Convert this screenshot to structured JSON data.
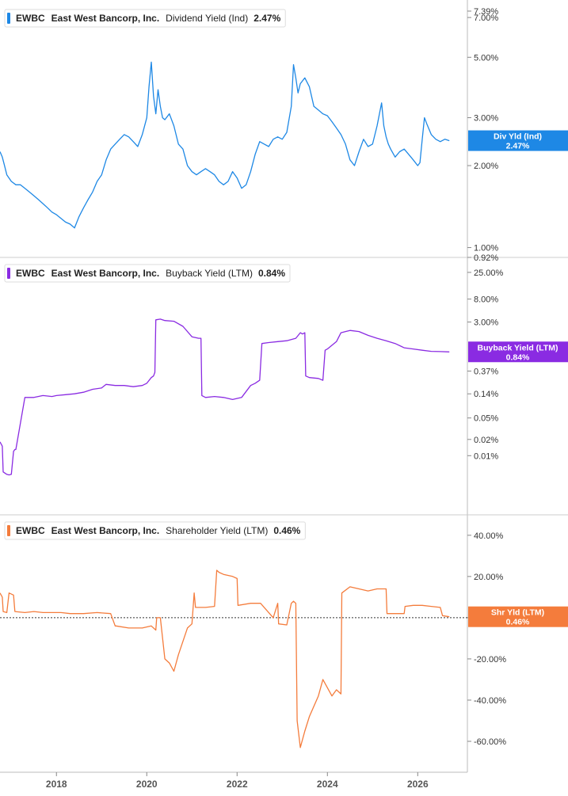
{
  "chart_data": [
    {
      "type": "line",
      "title": "",
      "legend": {
        "ticker": "EWBC",
        "company": "East West Bancorp, Inc.",
        "metric": "Dividend Yield (Ind)",
        "value": "2.47%"
      },
      "tag": {
        "label": "Div Yld (Ind)",
        "value": "2.47%"
      },
      "color": "#1e88e5",
      "scale": "log",
      "ylim": [
        0.92,
        7.39
      ],
      "y_ticks": [
        {
          "label": "7.39%",
          "value": 7.39
        },
        {
          "label": "7.00%",
          "value": 7.0
        },
        {
          "label": "5.00%",
          "value": 5.0
        },
        {
          "label": "3.00%",
          "value": 3.0
        },
        {
          "label": "2.00%",
          "value": 2.0
        },
        {
          "label": "1.00%",
          "value": 1.0
        },
        {
          "label": "0.92%",
          "value": 0.92
        }
      ],
      "series": [
        {
          "x": [
            2016.75,
            2016.8,
            2016.85,
            2016.9,
            2017.0,
            2017.1,
            2017.2,
            2017.3,
            2017.4,
            2017.5,
            2017.6,
            2017.7,
            2017.8,
            2017.9,
            2018.0,
            2018.1,
            2018.2,
            2018.3,
            2018.4,
            2018.5,
            2018.6,
            2018.7,
            2018.8,
            2018.9,
            2019.0,
            2019.1,
            2019.2,
            2019.3,
            2019.4,
            2019.5,
            2019.6,
            2019.7,
            2019.8,
            2019.9,
            2020.0,
            2020.05,
            2020.1,
            2020.15,
            2020.2,
            2020.25,
            2020.3,
            2020.35,
            2020.4,
            2020.5,
            2020.6,
            2020.7,
            2020.8,
            2020.9,
            2021.0,
            2021.1,
            2021.2,
            2021.3,
            2021.4,
            2021.5,
            2021.6,
            2021.7,
            2021.8,
            2021.9,
            2022.0,
            2022.1,
            2022.2,
            2022.3,
            2022.4,
            2022.5,
            2022.6,
            2022.7,
            2022.8,
            2022.9,
            2023.0,
            2023.1,
            2023.2,
            2023.25,
            2023.3,
            2023.35,
            2023.4,
            2023.5,
            2023.6,
            2023.7,
            2023.8,
            2023.9,
            2024.0,
            2024.1,
            2024.2,
            2024.3,
            2024.4,
            2024.5,
            2024.6,
            2024.7,
            2024.8,
            2024.9,
            2025.0,
            2025.1,
            2025.2,
            2025.25,
            2025.3,
            2025.35,
            2025.4,
            2025.5,
            2025.6,
            2025.7,
            2025.8,
            2025.9,
            2026.0,
            2026.05,
            2026.1,
            2026.15,
            2026.2,
            2026.3,
            2026.4,
            2026.5,
            2026.6,
            2026.7
          ],
          "y": [
            2.25,
            2.15,
            2.0,
            1.85,
            1.75,
            1.7,
            1.7,
            1.65,
            1.6,
            1.55,
            1.5,
            1.45,
            1.4,
            1.35,
            1.32,
            1.28,
            1.24,
            1.22,
            1.18,
            1.3,
            1.4,
            1.5,
            1.6,
            1.75,
            1.85,
            2.1,
            2.3,
            2.4,
            2.5,
            2.6,
            2.55,
            2.45,
            2.35,
            2.6,
            3.0,
            3.9,
            4.8,
            3.6,
            3.1,
            3.8,
            3.3,
            3.0,
            2.95,
            3.1,
            2.8,
            2.4,
            2.3,
            2.0,
            1.9,
            1.85,
            1.9,
            1.95,
            1.9,
            1.85,
            1.75,
            1.7,
            1.75,
            1.9,
            1.8,
            1.65,
            1.7,
            1.9,
            2.2,
            2.45,
            2.4,
            2.35,
            2.5,
            2.55,
            2.5,
            2.65,
            3.3,
            4.7,
            4.2,
            3.7,
            4.0,
            4.2,
            3.9,
            3.3,
            3.2,
            3.1,
            3.05,
            2.9,
            2.75,
            2.6,
            2.4,
            2.1,
            2.0,
            2.25,
            2.5,
            2.35,
            2.4,
            2.8,
            3.4,
            2.8,
            2.55,
            2.4,
            2.3,
            2.15,
            2.25,
            2.3,
            2.2,
            2.1,
            2.0,
            2.05,
            2.5,
            3.0,
            2.85,
            2.6,
            2.5,
            2.45,
            2.5,
            2.47
          ]
        }
      ]
    },
    {
      "type": "line",
      "title": "",
      "legend": {
        "ticker": "EWBC",
        "company": "East West Bancorp, Inc.",
        "metric": "Buyback Yield (LTM)",
        "value": "0.84%"
      },
      "tag": {
        "label": "Buyback Yield (LTM)",
        "value": "0.84%"
      },
      "color": "#8a2be2",
      "scale": "log",
      "ylim": [
        0.0008,
        40.0
      ],
      "y_ticks": [
        {
          "label": "25.00%",
          "value": 25.0
        },
        {
          "label": "8.00%",
          "value": 8.0
        },
        {
          "label": "3.00%",
          "value": 3.0
        },
        {
          "label": "0.37%",
          "value": 0.37
        },
        {
          "label": "0.14%",
          "value": 0.14
        },
        {
          "label": "0.05%",
          "value": 0.05
        },
        {
          "label": "0.02%",
          "value": 0.02
        },
        {
          "label": "0.01%",
          "value": 0.01
        }
      ],
      "series": [
        {
          "x": [
            2016.75,
            2016.8,
            2016.82,
            2016.9,
            2016.95,
            2017.0,
            2017.05,
            2017.08,
            2017.1,
            2017.3,
            2017.5,
            2017.7,
            2017.9,
            2018.0,
            2018.2,
            2018.4,
            2018.6,
            2018.8,
            2019.0,
            2019.1,
            2019.3,
            2019.5,
            2019.7,
            2019.9,
            2020.0,
            2020.1,
            2020.15,
            2020.18,
            2020.2,
            2020.3,
            2020.4,
            2020.6,
            2020.8,
            2021.0,
            2021.15,
            2021.2,
            2021.22,
            2021.3,
            2021.5,
            2021.7,
            2021.9,
            2022.1,
            2022.3,
            2022.4,
            2022.5,
            2022.55,
            2022.7,
            2022.9,
            2023.1,
            2023.3,
            2023.4,
            2023.45,
            2023.5,
            2023.52,
            2023.6,
            2023.8,
            2023.9,
            2023.95,
            2024.0,
            2024.2,
            2024.3,
            2024.4,
            2024.5,
            2024.7,
            2024.9,
            2025.1,
            2025.3,
            2025.5,
            2025.7,
            2025.9,
            2026.1,
            2026.3,
            2026.5,
            2026.7
          ],
          "y": [
            0.018,
            0.015,
            0.005,
            0.0045,
            0.0044,
            0.0045,
            0.012,
            0.013,
            0.013,
            0.12,
            0.12,
            0.13,
            0.125,
            0.13,
            0.135,
            0.14,
            0.15,
            0.17,
            0.18,
            0.21,
            0.2,
            0.2,
            0.19,
            0.2,
            0.22,
            0.28,
            0.3,
            0.35,
            3.3,
            3.4,
            3.2,
            3.1,
            2.5,
            1.6,
            1.5,
            1.5,
            0.13,
            0.12,
            0.125,
            0.12,
            0.11,
            0.12,
            0.2,
            0.22,
            0.25,
            1.2,
            1.25,
            1.3,
            1.35,
            1.5,
            1.9,
            1.8,
            1.9,
            0.3,
            0.28,
            0.27,
            0.25,
            0.9,
            0.95,
            1.3,
            1.9,
            2.0,
            2.1,
            2.0,
            1.7,
            1.5,
            1.35,
            1.2,
            1.0,
            0.95,
            0.9,
            0.86,
            0.85,
            0.84
          ]
        }
      ]
    },
    {
      "type": "line",
      "title": "",
      "legend": {
        "ticker": "EWBC",
        "company": "East West Bancorp, Inc.",
        "metric": "Shareholder Yield (LTM)",
        "value": "0.46%"
      },
      "tag": {
        "label": "Shr Yld (LTM)",
        "value": "0.46%"
      },
      "color": "#f47c3c",
      "scale": "linear",
      "ylim": [
        -75,
        48
      ],
      "zero_line": true,
      "y_ticks": [
        {
          "label": "40.00%",
          "value": 40
        },
        {
          "label": "20.00%",
          "value": 20
        },
        {
          "label": "0.00%",
          "value": 0
        },
        {
          "label": "-20.00%",
          "value": -20
        },
        {
          "label": "-40.00%",
          "value": -40
        },
        {
          "label": "-60.00%",
          "value": -60
        }
      ],
      "series": [
        {
          "x": [
            2016.75,
            2016.8,
            2016.82,
            2016.9,
            2016.95,
            2017.05,
            2017.08,
            2017.3,
            2017.5,
            2017.7,
            2017.9,
            2018.1,
            2018.3,
            2018.6,
            2018.9,
            2019.2,
            2019.3,
            2019.32,
            2019.6,
            2019.9,
            2020.1,
            2020.2,
            2020.22,
            2020.3,
            2020.4,
            2020.5,
            2020.6,
            2020.7,
            2020.9,
            2021.0,
            2021.05,
            2021.08,
            2021.3,
            2021.5,
            2021.55,
            2021.6,
            2021.7,
            2021.9,
            2022.0,
            2022.02,
            2022.3,
            2022.5,
            2022.52,
            2022.8,
            2022.9,
            2022.92,
            2023.1,
            2023.2,
            2023.25,
            2023.3,
            2023.33,
            2023.4,
            2023.5,
            2023.6,
            2023.8,
            2023.9,
            2024.1,
            2024.2,
            2024.3,
            2024.32,
            2024.5,
            2024.7,
            2024.9,
            2025.1,
            2025.3,
            2025.32,
            2025.5,
            2025.7,
            2025.72,
            2025.9,
            2026.1,
            2026.3,
            2026.5,
            2026.55,
            2026.7
          ],
          "y": [
            12,
            10,
            3,
            2.5,
            12,
            11,
            3,
            2.5,
            3,
            2.5,
            2.5,
            2.5,
            2,
            2,
            2.5,
            2,
            -4,
            -4,
            -5,
            -5,
            -4,
            -6,
            0,
            0,
            -20,
            -22,
            -26,
            -18,
            -5,
            -3,
            12,
            5,
            5,
            5.5,
            23,
            22,
            21,
            20,
            19,
            6,
            7,
            7,
            7,
            0,
            7,
            -3,
            -3.5,
            7,
            8,
            7,
            -50,
            -63,
            -55,
            -48,
            -38,
            -30,
            -38,
            -35,
            -37,
            12,
            15,
            14,
            13,
            14,
            14,
            2,
            2,
            2,
            5.5,
            6,
            6,
            5.5,
            5,
            1,
            0.46
          ]
        }
      ]
    }
  ],
  "x_axis": {
    "ticks": [
      {
        "label": "2018",
        "value": 2018
      },
      {
        "label": "2020",
        "value": 2020
      },
      {
        "label": "2022",
        "value": 2022
      },
      {
        "label": "2024",
        "value": 2024
      },
      {
        "label": "2026",
        "value": 2026
      }
    ],
    "xlim": [
      2016.75,
      2027.1
    ]
  }
}
